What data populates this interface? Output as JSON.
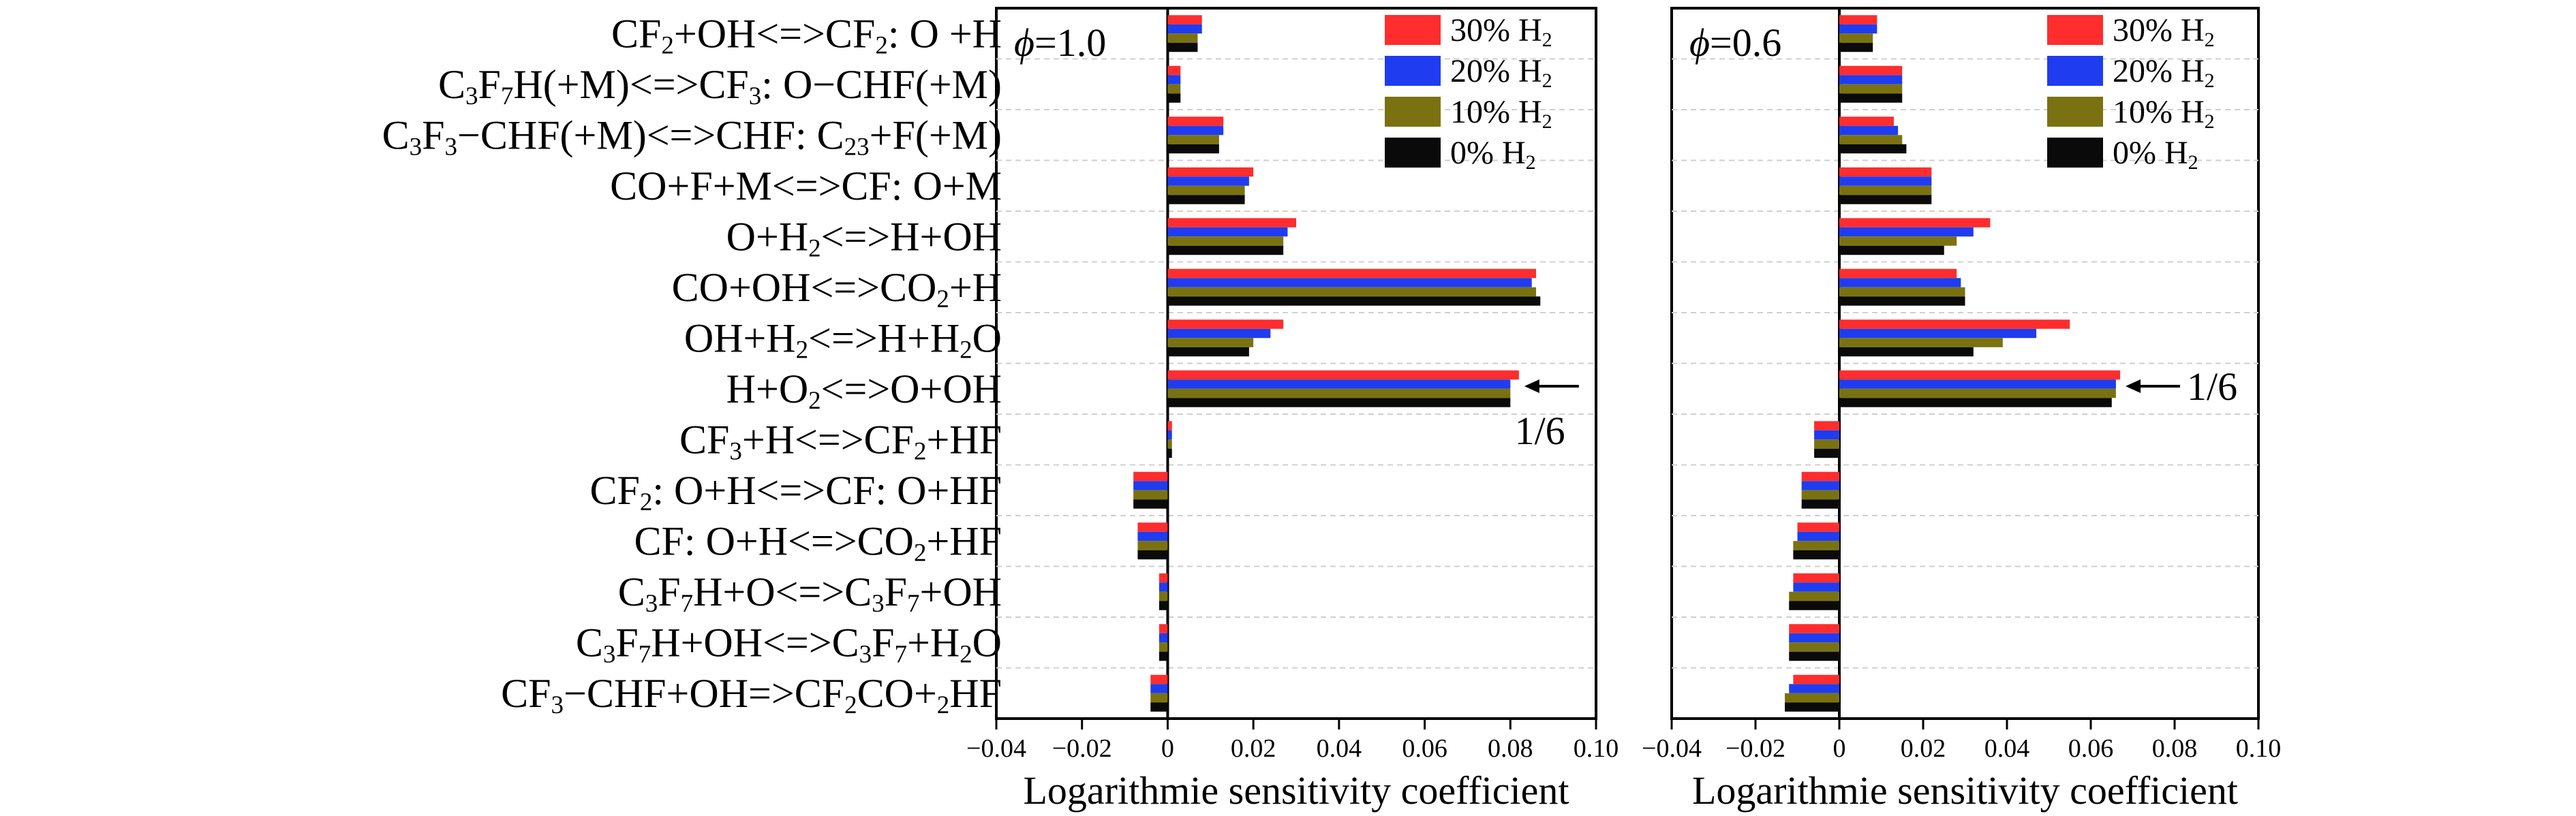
{
  "reaction_labels": [
    "CF2+OH<=>CF2: O +H",
    "C3F7H(+M)<=>CF3: O−CHF(+M)",
    "C3F3−CHF(+M)<=>CHF: C23+F(+M)",
    "CO+F+M<=>CF: O+M",
    "O+H2<=>H+OH",
    "CO+OH<=>CO2+H",
    "OH+H2<=>H+H2O",
    "H+O2<=>O+OH",
    "CF3+H<=>CF2+HF",
    "CF2: O+H<=>CF: O+HF",
    "CF: O+H<=>CO2+HF",
    "C3F7H+O<=>C3F7+OH",
    "C3F7H+OH<=>C3F7+H2O",
    "CF3−CHF+OH=>CF2CO+2HF"
  ],
  "legend_labels": [
    "30% H2",
    "20% H2",
    "10% H2",
    "0% H2"
  ],
  "colors": [
    "#ff2d2d",
    "#1f3cf0",
    "#7a7210",
    "#0a0a0a"
  ],
  "chart_data": [
    {
      "type": "bar",
      "orientation": "horizontal",
      "panel_label": "ϕ=1.0",
      "xlabel": "Logarithmie sensitivity coefficient",
      "xlim": [
        -0.04,
        0.1
      ],
      "ticks": [
        "−0.04",
        "−0.02",
        "0",
        "0.02",
        "0.04",
        "0.06",
        "0.08",
        "0.10"
      ],
      "annotation": "1/6",
      "series": [
        {
          "name": "30% H2",
          "values": [
            0.008,
            0.003,
            0.013,
            0.02,
            0.03,
            0.086,
            0.027,
            0.082,
            0.001,
            -0.008,
            -0.007,
            -0.002,
            -0.002,
            -0.004
          ]
        },
        {
          "name": "20% H2",
          "values": [
            0.008,
            0.003,
            0.013,
            0.019,
            0.028,
            0.085,
            0.024,
            0.08,
            0.001,
            -0.008,
            -0.007,
            -0.002,
            -0.002,
            -0.004
          ]
        },
        {
          "name": "10% H2",
          "values": [
            0.007,
            0.003,
            0.012,
            0.018,
            0.027,
            0.086,
            0.02,
            0.08,
            0.001,
            -0.008,
            -0.007,
            -0.002,
            -0.002,
            -0.004
          ]
        },
        {
          "name": "0% H2",
          "values": [
            0.007,
            0.003,
            0.012,
            0.018,
            0.027,
            0.087,
            0.019,
            0.08,
            0.001,
            -0.008,
            -0.007,
            -0.002,
            -0.002,
            -0.004
          ]
        }
      ]
    },
    {
      "type": "bar",
      "orientation": "horizontal",
      "panel_label": "ϕ=0.6",
      "xlabel": "Logarithmie sensitivity coefficient",
      "xlim": [
        -0.04,
        0.1
      ],
      "ticks": [
        "−0.04",
        "−0.02",
        "0",
        "0.02",
        "0.04",
        "0.06",
        "0.08",
        "0.10"
      ],
      "annotation": "1/6",
      "series": [
        {
          "name": "30% H2",
          "values": [
            0.009,
            0.015,
            0.013,
            0.022,
            0.036,
            0.028,
            0.055,
            0.067,
            -0.006,
            -0.009,
            -0.01,
            -0.011,
            -0.012,
            -0.011
          ]
        },
        {
          "name": "20% H2",
          "values": [
            0.009,
            0.015,
            0.014,
            0.022,
            0.032,
            0.029,
            0.047,
            0.066,
            -0.006,
            -0.009,
            -0.01,
            -0.011,
            -0.012,
            -0.012
          ]
        },
        {
          "name": "10% H2",
          "values": [
            0.008,
            0.015,
            0.015,
            0.022,
            0.028,
            0.03,
            0.039,
            0.066,
            -0.006,
            -0.009,
            -0.011,
            -0.012,
            -0.012,
            -0.013
          ]
        },
        {
          "name": "0% H2",
          "values": [
            0.008,
            0.015,
            0.016,
            0.022,
            0.025,
            0.03,
            0.032,
            0.065,
            -0.006,
            -0.009,
            -0.011,
            -0.012,
            -0.012,
            -0.013
          ]
        }
      ]
    }
  ]
}
